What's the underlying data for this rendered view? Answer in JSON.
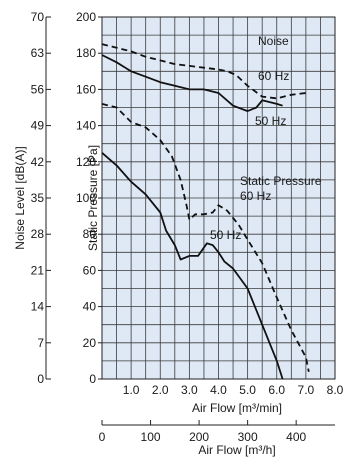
{
  "chart_data": {
    "type": "line",
    "left_axis": {
      "label": "Noise Level [dB(A)]",
      "ticks": [
        "70",
        "63",
        "56",
        "49",
        "42",
        "35",
        "28",
        "21",
        "14",
        "7",
        "0"
      ]
    },
    "right_axis": {
      "label": "Static Pressure [Pa]",
      "ticks": [
        "200",
        "180",
        "160",
        "140",
        "120",
        "100",
        "80",
        "60",
        "40",
        "20",
        "0"
      ]
    },
    "x_axis": {
      "label": "Air Flow [m³/min]",
      "ticks": [
        "1.0",
        "2.0",
        "3.0",
        "4.0",
        "5.0",
        "6.0",
        "7.0",
        "8.0"
      ],
      "range": [
        0,
        8
      ]
    },
    "x_axis2": {
      "label": "Air Flow [m³/h]",
      "ticks": [
        "0",
        "100",
        "200",
        "300",
        "400"
      ]
    },
    "ylim": [
      0,
      200
    ],
    "grid": true,
    "annotations": {
      "noise_title": "Noise",
      "pressure_title": "Static Pressure",
      "label_60hz_noise": "60 Hz",
      "label_50hz_noise": "50 Hz",
      "label_60hz_pressure": "60 Hz",
      "label_50hz_pressure": "50 Hz"
    },
    "series": [
      {
        "label": "Noise 60 Hz",
        "style": "dashed",
        "x": [
          0,
          0.5,
          1.0,
          1.5,
          2.0,
          2.5,
          3.0,
          3.5,
          4.0,
          4.3,
          4.6,
          5.0,
          5.5,
          6.0,
          6.5,
          7.0
        ],
        "y": [
          185,
          183,
          181,
          178,
          176,
          174,
          173,
          172,
          171,
          170,
          168,
          162,
          156,
          155,
          157,
          158
        ]
      },
      {
        "label": "Noise 50 Hz",
        "style": "solid",
        "x": [
          0,
          0.5,
          1.0,
          1.5,
          2.0,
          2.5,
          3.0,
          3.5,
          4.0,
          4.5,
          5.0,
          5.3,
          5.5,
          6.0,
          6.2
        ],
        "y": [
          179,
          175,
          170,
          167,
          164,
          162,
          160,
          160,
          158,
          151,
          148,
          150,
          154,
          152,
          151
        ]
      },
      {
        "label": "Static Pressure 60 Hz",
        "style": "dashed",
        "x": [
          0,
          0.5,
          1.0,
          1.5,
          2.0,
          2.4,
          2.7,
          2.9,
          3.0,
          3.2,
          3.5,
          3.8,
          4.0,
          4.3,
          4.7,
          5.0,
          5.5,
          6.0,
          6.5,
          7.0,
          7.1
        ],
        "y": [
          152,
          150,
          142,
          139,
          132,
          123,
          110,
          96,
          88,
          91,
          91,
          92,
          96,
          93,
          85,
          77,
          64,
          45,
          27,
          12,
          4
        ]
      },
      {
        "label": "Static Pressure 50 Hz",
        "style": "solid",
        "x": [
          0,
          0.5,
          1.0,
          1.5,
          2.0,
          2.2,
          2.5,
          2.7,
          3.0,
          3.3,
          3.6,
          3.8,
          4.0,
          4.2,
          4.5,
          5.0,
          5.5,
          6.0,
          6.2
        ],
        "y": [
          125,
          118,
          109,
          102,
          92,
          82,
          74,
          66,
          68,
          68,
          75,
          74,
          70,
          65,
          61,
          50,
          30,
          10,
          0
        ]
      }
    ]
  }
}
